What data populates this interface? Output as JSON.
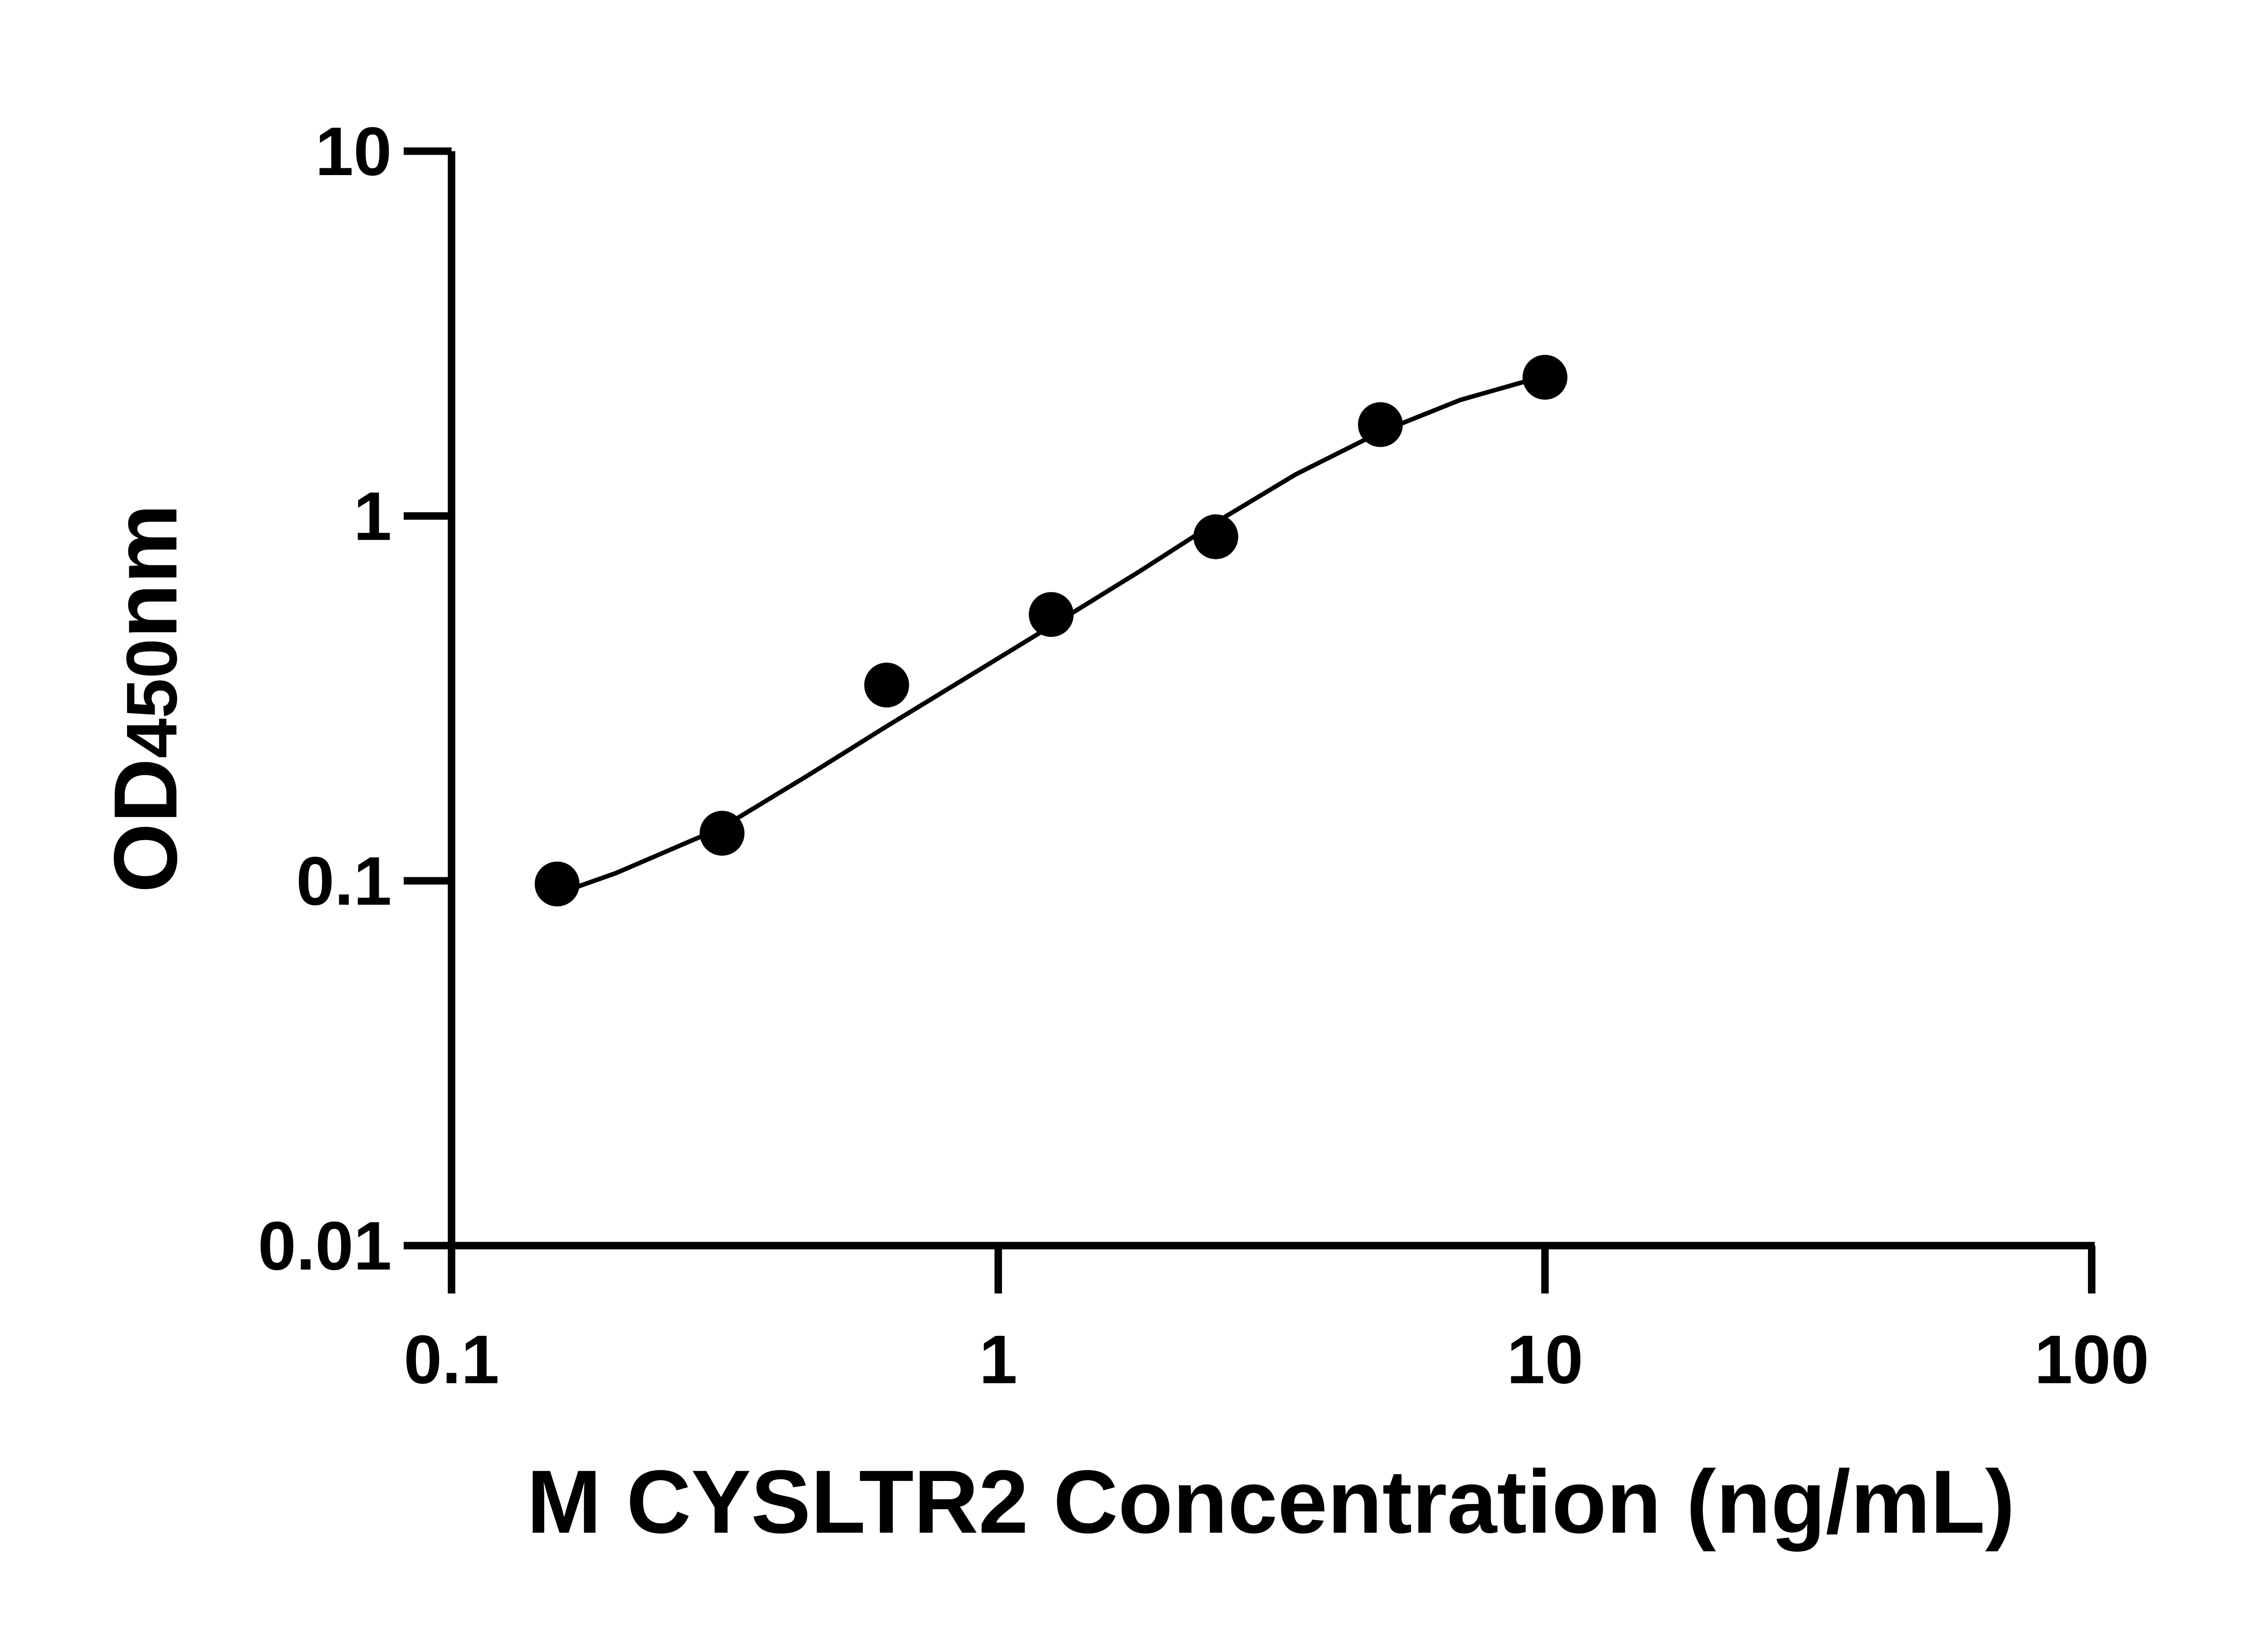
{
  "chart_data": {
    "type": "scatter",
    "title": "",
    "xlabel": "M CYSLTR2 Concentration (ng/mL)",
    "ylabel": {
      "main": "OD",
      "sub": "450",
      "unit": "nm"
    },
    "xscale": "log",
    "yscale": "log",
    "xlim": [
      0.1,
      100
    ],
    "ylim": [
      0.01,
      10
    ],
    "xticks": [
      "0.1",
      "1",
      "10",
      "100"
    ],
    "yticks": [
      "0.01",
      "0.1",
      "1",
      "10"
    ],
    "grid": false,
    "legend": "none",
    "color": "#000000",
    "points": {
      "x": [
        0.156,
        0.3125,
        0.625,
        1.25,
        2.5,
        5,
        10
      ],
      "y": [
        0.098,
        0.135,
        0.344,
        0.537,
        0.877,
        1.78,
        2.4
      ]
    },
    "fit_curve": {
      "x": [
        0.156,
        0.2,
        0.3125,
        0.45,
        0.625,
        0.9,
        1.25,
        1.8,
        2.5,
        3.5,
        5,
        7,
        10
      ],
      "y": [
        0.092,
        0.105,
        0.14,
        0.195,
        0.265,
        0.37,
        0.5,
        0.7,
        0.96,
        1.3,
        1.7,
        2.08,
        2.42
      ]
    }
  }
}
